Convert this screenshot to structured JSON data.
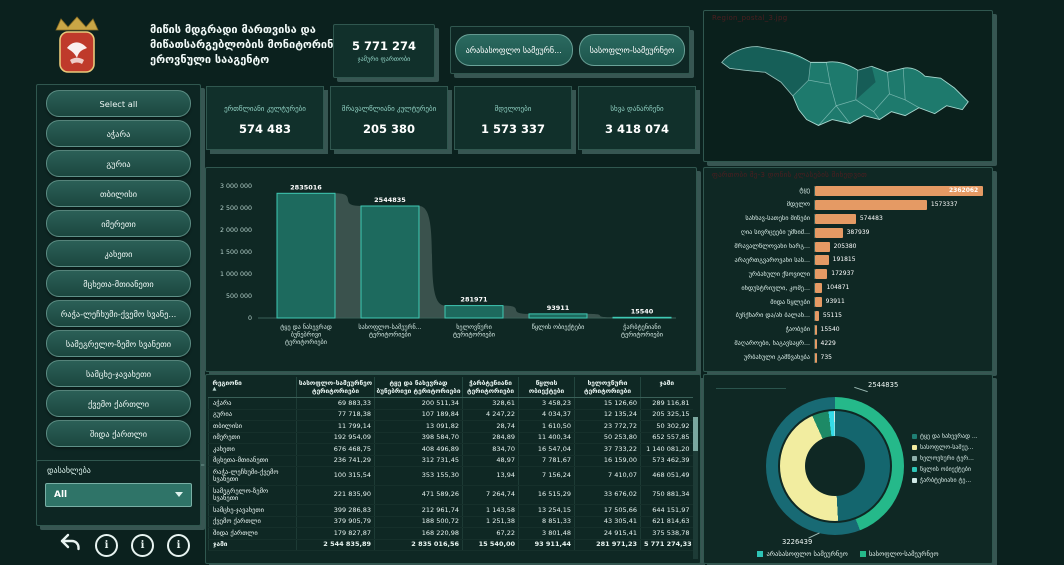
{
  "header": {
    "title_lines": [
      "მიწის მდგრადი მართვისა და",
      "მიწათსარგებლობის მონიტორინგის",
      "ეროვნული სააგენტო"
    ],
    "total_card": {
      "value": "5 771 274",
      "label": "ჯამური ფართობი"
    },
    "filter_buttons": [
      "არასასოფლო სამეურნ...",
      "სასოფლო-სამეურნეო"
    ]
  },
  "sidebar": {
    "buttons": [
      "Select all",
      "აჭარა",
      "გურია",
      "თბილისი",
      "იმერეთი",
      "კახეთი",
      "მცხეთა-მთიანეთი",
      "რაჭა-ლეჩხუმი-ქვემო სვანე...",
      "სამეგრელო-ზემო სვანეთი",
      "სამცხე-ჯავახეთი",
      "ქვემო ქართლი",
      "შიდა ქართლი"
    ],
    "dropdown": {
      "label": "დასახლება",
      "value": "All"
    },
    "footer_icons": [
      "undo-icon",
      "info-icon",
      "info-icon",
      "info-icon"
    ]
  },
  "kpi_cards": [
    {
      "label": "ერთწლიანი კულტურები",
      "value": "574 483"
    },
    {
      "label": "მრავალწლიანი კულტურები",
      "value": "205 380"
    },
    {
      "label": "მდელოები",
      "value": "1 573 337"
    },
    {
      "label": "სხვა დანარჩენი",
      "value": "3 418 074"
    }
  ],
  "map": {
    "caption": "Region_postal_3.jpg"
  },
  "chart_data": [
    {
      "id": "landcover-bar",
      "type": "bar",
      "categories": [
        "ტყე და ნახევრად ბუნებრივი ტერიტორიები",
        "სასოფლო-სამეურნეო ტერიტორიები",
        "ხელოვნური ტერიტორიები",
        "წყლის ობიექტები",
        "ჭარბტენიანი ტერიტორიები"
      ],
      "display_labels": [
        [
          "ტყე და ნახევრად",
          "ბუნებრივი",
          "ტერიტორიები"
        ],
        [
          "სასოფლო-სამეურნ...",
          "ტერიტორიები"
        ],
        [
          "ხელოვნური",
          "ტერიტორიები"
        ],
        [
          "წყლის ობიექტები"
        ],
        [
          "ჭარბტენიანი",
          "ტერიტორიები"
        ]
      ],
      "values": [
        2835016,
        2544835,
        281971,
        93911,
        15540
      ],
      "ylim": [
        0,
        3000000
      ],
      "yticks": [
        "0",
        "500 000",
        "1 000 000",
        "1 500 000",
        "2 000 000",
        "2 500 000",
        "3 000 000"
      ],
      "bar_color": "#1d6a5e",
      "bar_stroke": "#3fc9b4"
    },
    {
      "id": "class-hbar",
      "type": "bar",
      "orientation": "horizontal",
      "caption": "ფართობი მე-3 დონის კლასების მიხედვით",
      "categories": [
        "ტყე",
        "მდელო",
        "სახნავ-სათესი მიწები",
        "ღია სივრცეები უმნიშ...",
        "მრავალწლოვანი ნარგ...",
        "არაერთგვაროვანი სას...",
        "ურბანული ქსოვილი",
        "ინდუსტრიული, კომე...",
        "შიდა წყლები",
        "ბუჩქნარი და/ან ბალახ...",
        "ჭაობები",
        "მაღაროები, ნაგავსაყრ...",
        "ურბანული გამწვანება"
      ],
      "values": [
        2362062,
        1573337,
        574483,
        387939,
        205380,
        191815,
        172937,
        104871,
        93911,
        55115,
        15540,
        4229,
        735
      ],
      "bar_color": "#e59a64"
    },
    {
      "id": "agri-donut",
      "type": "pie",
      "outer_ring": [
        {
          "label": "სასოფლო-სამეურნეო",
          "value": 2544835,
          "color": "#25b98a"
        },
        {
          "label": "არასასოფლო სამეურნეო",
          "value": 3226439,
          "color": "#186a74"
        }
      ],
      "inner_ring": [
        {
          "label": "ტყე და ნახევრად ბუნებრივი ტერიტორიები",
          "value": 2835016,
          "color": "#14666e"
        },
        {
          "label": "სასოფლო-სამეურნეო ტერიტორიები",
          "value": 2544835,
          "color": "#f2eda0"
        },
        {
          "label": "ხელოვნური ტერიტორიები",
          "value": 281971,
          "color": "#1d8a66"
        },
        {
          "label": "წყლის ობიექტები",
          "value": 93911,
          "color": "#35dbe8"
        },
        {
          "label": "ჭარბტენიანი ტერიტორიები",
          "value": 15540,
          "color": "#cfe8e5"
        }
      ],
      "callouts": [
        "2544835",
        "3226439"
      ],
      "legend_right": [
        {
          "label": "ტყე და ნახევრად ...",
          "color": "#1f7f74"
        },
        {
          "label": "სასოფლო-სამეუ...",
          "color": "#f2eda0"
        },
        {
          "label": "ხელოვნური ტერ...",
          "color": "#8fb0ab"
        },
        {
          "label": "წყლის ობიექტები",
          "color": "#2ec4b6"
        },
        {
          "label": "ჭარბტენიანი ტე...",
          "color": "#cfe8e5"
        }
      ],
      "legend_bottom": [
        {
          "label": "არასასოფლო სამეურნეო",
          "color": "#2ec4b6"
        },
        {
          "label": "სასოფლო-სამეურნეო",
          "color": "#25b98a"
        }
      ]
    }
  ],
  "table": {
    "sort_icon": "▲",
    "headers": [
      "რეგიონი",
      "სასოფლო-სამეურნეო ტერიტორიები",
      "ტყე და ნახევრად ბუნებრივი ტერიტორიები",
      "ჭარბტენიანი ტერიტორიები",
      "წყლის ობიექტები",
      "ხელოვნური ტერიტორიები",
      "ჯამი"
    ],
    "rows": [
      {
        "region": "აჭარა",
        "values": [
          "69 883,33",
          "200 511,34",
          "328,61",
          "3 458,23",
          "15 126,60",
          "289 116,81"
        ]
      },
      {
        "region": "გურია",
        "values": [
          "77 718,38",
          "107 189,84",
          "4 247,22",
          "4 034,37",
          "12 135,24",
          "205 325,15"
        ]
      },
      {
        "region": "თბილისი",
        "values": [
          "11 799,14",
          "13 091,82",
          "28,74",
          "1 610,50",
          "23 772,72",
          "50 302,92"
        ]
      },
      {
        "region": "იმერეთი",
        "values": [
          "192 954,09",
          "398 584,70",
          "284,89",
          "11 400,34",
          "50 253,80",
          "652 557,85"
        ]
      },
      {
        "region": "კახეთი",
        "values": [
          "676 468,75",
          "408 496,89",
          "834,70",
          "16 547,04",
          "37 733,22",
          "1 140 081,20"
        ]
      },
      {
        "region": "მცხეთა-მთიანეთი",
        "values": [
          "236 741,29",
          "312 731,45",
          "48,97",
          "7 781,67",
          "16 159,00",
          "573 462,39"
        ]
      },
      {
        "region": "რაჭა-ლეჩხუმი-ქვემო სვანეთი",
        "values": [
          "100 315,54",
          "353 155,30",
          "13,94",
          "7 156,24",
          "7 410,07",
          "468 051,49"
        ]
      },
      {
        "region": "სამეგრელო-ზემო სვანეთი",
        "values": [
          "221 835,90",
          "471 589,26",
          "7 264,74",
          "16 515,29",
          "33 676,02",
          "750 881,34"
        ]
      },
      {
        "region": "სამცხე-ჯავახეთი",
        "values": [
          "399 286,83",
          "212 961,74",
          "1 143,58",
          "13 254,15",
          "17 505,66",
          "644 151,97"
        ]
      },
      {
        "region": "ქვემო ქართლი",
        "values": [
          "379 905,79",
          "188 500,72",
          "1 251,38",
          "8 851,33",
          "43 305,41",
          "621 814,63"
        ]
      },
      {
        "region": "შიდა ქართლი",
        "values": [
          "179 827,87",
          "168 220,98",
          "67,22",
          "3 801,48",
          "24 915,41",
          "375 538,78"
        ]
      }
    ],
    "total_row": {
      "region": "ჯამი",
      "values": [
        "2 544 835,89",
        "2 835 016,56",
        "15 540,00",
        "93 911,44",
        "281 971,23",
        "5 771 274,33"
      ]
    }
  }
}
